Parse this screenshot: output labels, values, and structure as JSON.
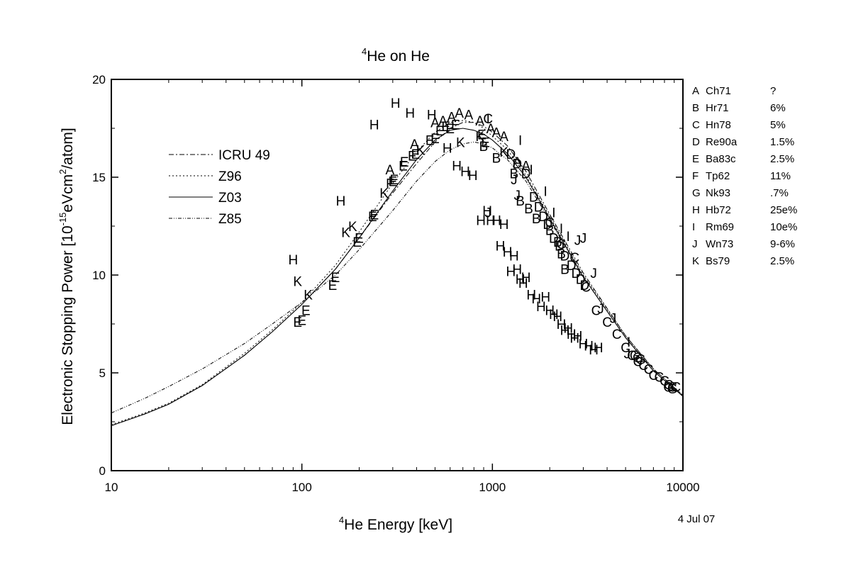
{
  "chart_data": {
    "type": "scatter",
    "title": {
      "sup": "4",
      "main": "He on He"
    },
    "xlabel": {
      "sup": "4",
      "main": "He Energy [keV]"
    },
    "ylabel": {
      "pre": "Electronic Stopping Power [10",
      "sup1": "-15",
      "mid": "eVcm",
      "sup2": "2",
      "post": "/atom]"
    },
    "date_label": "4 Jul 07",
    "x_scale": "log",
    "xlim": [
      10,
      10000
    ],
    "ylim": [
      0,
      20
    ],
    "x_ticks": [
      10,
      100,
      1000,
      10000
    ],
    "x_tick_labels": [
      "10",
      "100",
      "1000",
      "10000"
    ],
    "y_ticks": [
      0,
      5,
      10,
      15,
      20
    ],
    "y_tick_labels": [
      "0",
      "5",
      "10",
      "15",
      "20"
    ],
    "grid": false,
    "curves": [
      {
        "name": "ICRU 49",
        "dash": "7,3,2,3",
        "x": [
          10,
          15,
          20,
          30,
          50,
          70,
          100,
          150,
          200,
          300,
          400,
          500,
          600,
          700,
          800,
          900,
          1000,
          1200,
          1500,
          2000,
          3000,
          5000,
          7000,
          10000
        ],
        "y": [
          2.3,
          2.9,
          3.4,
          4.35,
          5.9,
          7.1,
          8.5,
          10.3,
          11.9,
          14.2,
          15.7,
          16.8,
          17.5,
          17.8,
          17.8,
          17.6,
          17.3,
          16.6,
          15.3,
          13.1,
          10.1,
          6.9,
          5.2,
          3.85
        ]
      },
      {
        "name": "Z96",
        "dash": "2,3",
        "x": [
          10,
          15,
          20,
          30,
          50,
          70,
          100,
          150,
          200,
          300,
          400,
          500,
          600,
          700,
          800,
          900,
          1000,
          1200,
          1500,
          2000,
          3000,
          5000,
          7000,
          10000
        ],
        "y": [
          2.35,
          2.95,
          3.45,
          4.4,
          6.0,
          7.2,
          8.6,
          10.5,
          12.2,
          14.7,
          16.3,
          17.3,
          17.8,
          17.9,
          17.8,
          17.5,
          17.1,
          16.4,
          15.1,
          13.0,
          10.0,
          6.9,
          5.2,
          3.85
        ]
      },
      {
        "name": "Z03",
        "dash": "",
        "x": [
          10,
          15,
          20,
          30,
          50,
          70,
          100,
          150,
          200,
          300,
          400,
          500,
          600,
          700,
          800,
          900,
          1000,
          1200,
          1500,
          2000,
          3000,
          5000,
          7000,
          10000
        ],
        "y": [
          2.3,
          2.9,
          3.4,
          4.35,
          5.9,
          7.1,
          8.5,
          10.3,
          11.9,
          14.3,
          15.9,
          16.9,
          17.4,
          17.5,
          17.4,
          17.2,
          16.9,
          16.2,
          15.0,
          12.9,
          9.9,
          6.8,
          5.1,
          3.8
        ]
      },
      {
        "name": "Z85",
        "dash": "5,2,1,2,1,2",
        "x": [
          10,
          15,
          20,
          30,
          50,
          70,
          100,
          150,
          200,
          300,
          400,
          500,
          600,
          700,
          800,
          900,
          1000,
          1200,
          1500,
          2000,
          3000,
          5000,
          7000,
          10000
        ],
        "y": [
          2.95,
          3.7,
          4.3,
          5.2,
          6.5,
          7.5,
          8.6,
          10.0,
          11.3,
          13.3,
          14.8,
          15.8,
          16.4,
          16.7,
          16.8,
          16.7,
          16.5,
          15.9,
          14.8,
          12.8,
          9.9,
          6.8,
          5.1,
          3.8
        ]
      }
    ],
    "references": [
      {
        "code": "A",
        "ref": "Ch71",
        "err": "?"
      },
      {
        "code": "B",
        "ref": "Hr71",
        "err": "6%"
      },
      {
        "code": "C",
        "ref": "Hn78",
        "err": "5%"
      },
      {
        "code": "D",
        "ref": "Re90a",
        "err": "1.5%"
      },
      {
        "code": "E",
        "ref": "Ba83c",
        "err": "2.5%"
      },
      {
        "code": "F",
        "ref": "Tp62",
        "err": "11%"
      },
      {
        "code": "G",
        "ref": "Nk93",
        "err": ".7%"
      },
      {
        "code": "H",
        "ref": "Hb72",
        "err": "25e%"
      },
      {
        "code": "I",
        "ref": "Rm69",
        "err": "10e%"
      },
      {
        "code": "J",
        "ref": "Wn73",
        "err": "9-6%"
      },
      {
        "code": "K",
        "ref": "Bs79",
        "err": "2.5%"
      }
    ],
    "points": [
      [
        "H",
        90,
        10.8
      ],
      [
        "H",
        160,
        13.8
      ],
      [
        "H",
        240,
        17.7
      ],
      [
        "H",
        310,
        18.8
      ],
      [
        "H",
        370,
        18.3
      ],
      [
        "H",
        480,
        18.2
      ],
      [
        "H",
        580,
        16.5
      ],
      [
        "H",
        650,
        15.6
      ],
      [
        "H",
        720,
        15.3
      ],
      [
        "H",
        790,
        15.1
      ],
      [
        "H",
        870,
        12.8
      ],
      [
        "H",
        940,
        13.3
      ],
      [
        "H",
        980,
        12.8
      ],
      [
        "H",
        1050,
        12.8
      ],
      [
        "H",
        1150,
        12.6
      ],
      [
        "H",
        1100,
        11.5
      ],
      [
        "H",
        1200,
        11.2
      ],
      [
        "H",
        1300,
        11.0
      ],
      [
        "H",
        1250,
        10.2
      ],
      [
        "H",
        1350,
        10.3
      ],
      [
        "H",
        1400,
        9.8
      ],
      [
        "H",
        1500,
        9.9
      ],
      [
        "H",
        1450,
        9.6
      ],
      [
        "H",
        1600,
        9.0
      ],
      [
        "H",
        1700,
        8.8
      ],
      [
        "H",
        1800,
        8.4
      ],
      [
        "H",
        1900,
        8.9
      ],
      [
        "H",
        2000,
        8.2
      ],
      [
        "H",
        2100,
        8.0
      ],
      [
        "H",
        2200,
        7.9
      ],
      [
        "H",
        2300,
        7.5
      ],
      [
        "H",
        2400,
        7.2
      ],
      [
        "H",
        2500,
        7.3
      ],
      [
        "H",
        2600,
        7.0
      ],
      [
        "H",
        2700,
        6.8
      ],
      [
        "H",
        2800,
        6.9
      ],
      [
        "H",
        3000,
        6.5
      ],
      [
        "H",
        3200,
        6.4
      ],
      [
        "H",
        3400,
        6.2
      ],
      [
        "H",
        3600,
        6.3
      ],
      [
        "K",
        95,
        9.7
      ],
      [
        "K",
        108,
        9.0
      ],
      [
        "K",
        170,
        12.2
      ],
      [
        "K",
        185,
        12.5
      ],
      [
        "K",
        270,
        14.2
      ],
      [
        "K",
        420,
        16.4
      ],
      [
        "K",
        680,
        16.8
      ],
      [
        "K",
        860,
        17.1
      ],
      [
        "K",
        1150,
        16.3
      ],
      [
        "E",
        95,
        7.6
      ],
      [
        "E",
        100,
        7.7
      ],
      [
        "E",
        105,
        8.2
      ],
      [
        "E",
        145,
        9.5
      ],
      [
        "E",
        150,
        9.9
      ],
      [
        "E",
        195,
        11.7
      ],
      [
        "E",
        200,
        11.9
      ],
      [
        "E",
        235,
        13.0
      ],
      [
        "E",
        240,
        13.1
      ],
      [
        "E",
        300,
        14.8
      ],
      [
        "E",
        305,
        14.9
      ],
      [
        "E",
        340,
        15.6
      ],
      [
        "E",
        345,
        15.8
      ],
      [
        "E",
        380,
        16.1
      ],
      [
        "E",
        395,
        16.2
      ],
      [
        "E",
        470,
        16.9
      ],
      [
        "E",
        500,
        17.0
      ],
      [
        "E",
        530,
        17.4
      ],
      [
        "E",
        570,
        17.6
      ],
      [
        "E",
        600,
        17.5
      ],
      [
        "E",
        640,
        17.7
      ],
      [
        "E",
        880,
        17.2
      ],
      [
        "E",
        920,
        16.8
      ],
      [
        "A",
        290,
        15.4
      ],
      [
        "A",
        390,
        16.7
      ],
      [
        "A",
        500,
        17.8
      ],
      [
        "A",
        550,
        17.9
      ],
      [
        "A",
        610,
        18.1
      ],
      [
        "A",
        670,
        18.3
      ],
      [
        "A",
        750,
        18.2
      ],
      [
        "A",
        860,
        17.9
      ],
      [
        "A",
        980,
        17.5
      ],
      [
        "A",
        1050,
        17.3
      ],
      [
        "A",
        1150,
        17.1
      ],
      [
        "A",
        1350,
        15.8
      ],
      [
        "A",
        1500,
        15.6
      ],
      [
        "B",
        900,
        16.6
      ],
      [
        "B",
        1050,
        16.0
      ],
      [
        "B",
        1300,
        15.2
      ],
      [
        "B",
        1400,
        13.8
      ],
      [
        "B",
        1550,
        13.4
      ],
      [
        "B",
        1700,
        12.9
      ],
      [
        "B",
        2000,
        12.3
      ],
      [
        "B",
        2200,
        11.7
      ],
      [
        "B",
        2300,
        11.1
      ],
      [
        "B",
        2400,
        10.3
      ],
      [
        "C",
        950,
        18.0
      ],
      [
        "C",
        2000,
        12.7
      ],
      [
        "C",
        2300,
        11.6
      ],
      [
        "C",
        2700,
        10.9
      ],
      [
        "C",
        3100,
        9.4
      ],
      [
        "C",
        3500,
        8.2
      ],
      [
        "C",
        4000,
        7.6
      ],
      [
        "C",
        4500,
        7.0
      ],
      [
        "C",
        5000,
        6.3
      ],
      [
        "C",
        5400,
        5.9
      ],
      [
        "C",
        5800,
        5.6
      ],
      [
        "C",
        6200,
        5.4
      ],
      [
        "C",
        6600,
        5.2
      ],
      [
        "C",
        7000,
        4.9
      ],
      [
        "C",
        7500,
        4.8
      ],
      [
        "C",
        8000,
        4.6
      ],
      [
        "C",
        8400,
        4.4
      ],
      [
        "C",
        8800,
        4.3
      ],
      [
        "C",
        9200,
        4.3
      ],
      [
        "D",
        1250,
        16.2
      ],
      [
        "D",
        1350,
        15.7
      ],
      [
        "D",
        1500,
        15.2
      ],
      [
        "D",
        1650,
        14.0
      ],
      [
        "D",
        1750,
        13.5
      ],
      [
        "D",
        1850,
        13.0
      ],
      [
        "D",
        1950,
        12.6
      ],
      [
        "D",
        2100,
        11.9
      ],
      [
        "D",
        2250,
        11.5
      ],
      [
        "D",
        2400,
        11.0
      ],
      [
        "D",
        2600,
        10.5
      ],
      [
        "D",
        2750,
        10.1
      ],
      [
        "D",
        2900,
        9.8
      ],
      [
        "D",
        3050,
        9.5
      ],
      [
        "G",
        5600,
        5.9
      ],
      [
        "G",
        5800,
        5.8
      ],
      [
        "G",
        6000,
        5.7
      ],
      [
        "G",
        8400,
        4.3
      ],
      [
        "G",
        8800,
        4.2
      ],
      [
        "I",
        950,
        18.0
      ],
      [
        "I",
        1400,
        16.9
      ],
      [
        "I",
        1600,
        15.4
      ],
      [
        "I",
        1900,
        14.3
      ],
      [
        "I",
        2100,
        13.2
      ],
      [
        "I",
        2300,
        12.4
      ],
      [
        "I",
        2500,
        12.0
      ],
      [
        "I",
        5200,
        6.6
      ],
      [
        "J",
        950,
        13.2
      ],
      [
        "J",
        1300,
        14.9
      ],
      [
        "J",
        1350,
        14.1
      ],
      [
        "J",
        2800,
        11.8
      ],
      [
        "J",
        3000,
        11.9
      ],
      [
        "J",
        3400,
        10.1
      ],
      [
        "J",
        3700,
        8.3
      ],
      [
        "J",
        4300,
        7.8
      ],
      [
        "J",
        5100,
        6.0
      ],
      [
        "F",
        290,
        14.7
      ]
    ]
  }
}
